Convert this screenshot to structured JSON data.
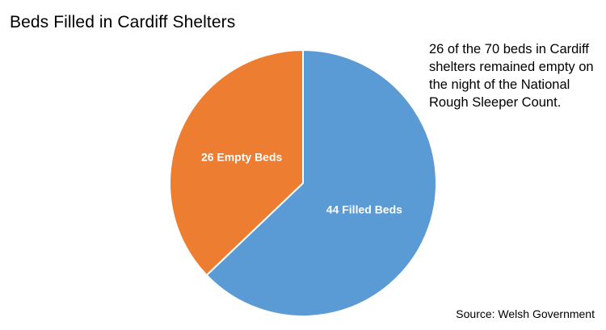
{
  "chart_data": {
    "type": "pie",
    "title": "Beds Filled in Cardiff Shelters",
    "slices": [
      {
        "label": "44 Filled Beds",
        "value": 44,
        "color": "#5b9bd5"
      },
      {
        "label": "26 Empty Beds",
        "value": 26,
        "color": "#ed7d31"
      }
    ],
    "total": 70,
    "legend": "none"
  },
  "annotation": "26 of the 70 beds in Cardiff shelters remained empty on the night of the National Rough Sleeper Count.",
  "source": "Source: Welsh Government"
}
